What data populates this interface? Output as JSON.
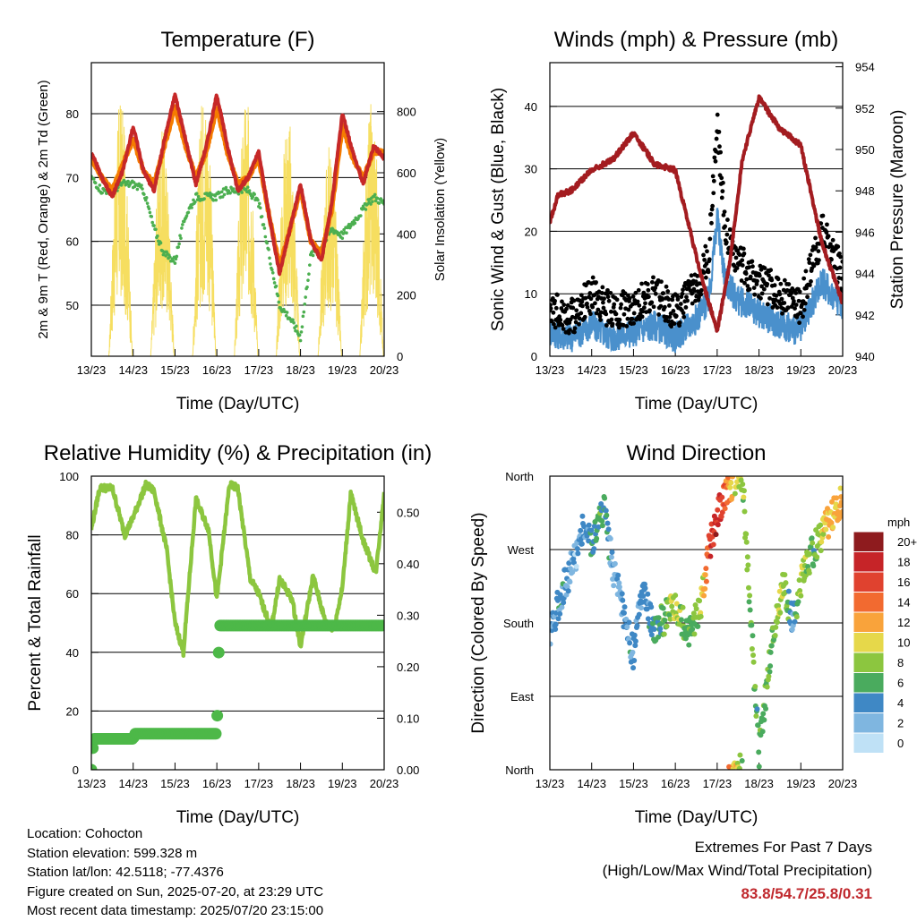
{
  "chart_data": [
    {
      "type": "line",
      "title": "Temperature (F)",
      "xlabel": "Time (Day/UTC)",
      "ylabel": "2m & 9m T (Red, Orange) & 2m Td (Green)",
      "y2label": "Solar Insolation (Yellow)",
      "x_ticks": [
        "13/23",
        "14/23",
        "15/23",
        "16/23",
        "17/23",
        "18/23",
        "19/23",
        "20/23"
      ],
      "ylim": [
        42,
        88
      ],
      "y_ticks": [
        50,
        60,
        70,
        80
      ],
      "y2lim": [
        0,
        960
      ],
      "y2_ticks": [
        0,
        200,
        400,
        600,
        800
      ],
      "series": [
        {
          "name": "2m T",
          "color": "#c62828",
          "x": [
            0,
            0.25,
            0.5,
            0.75,
            1,
            1.25,
            1.5,
            1.75,
            2,
            2.25,
            2.5,
            2.75,
            3,
            3.25,
            3.5,
            3.75,
            4,
            4.25,
            4.5,
            4.75,
            5,
            5.25,
            5.5,
            5.75,
            6,
            6.25,
            6.5,
            6.75,
            7
          ],
          "values": [
            74,
            70,
            67,
            71,
            78,
            71,
            68,
            76,
            83,
            76,
            69,
            75,
            83,
            75,
            68,
            70,
            74,
            64,
            55,
            62,
            69,
            60,
            57,
            66,
            80,
            74,
            69,
            75,
            73
          ]
        },
        {
          "name": "9m T",
          "color": "#f57c00",
          "x": [
            0,
            0.25,
            0.5,
            0.75,
            1,
            1.25,
            1.5,
            1.75,
            2,
            2.25,
            2.5,
            2.75,
            3,
            3.25,
            3.5,
            3.75,
            4,
            4.25,
            4.5,
            4.75,
            5,
            5.25,
            5.5,
            5.75,
            6,
            6.25,
            6.5,
            6.75,
            7
          ],
          "values": [
            73,
            70,
            68,
            72,
            76,
            71,
            69,
            75,
            81,
            75,
            70,
            74,
            81,
            74,
            69,
            70,
            73,
            64,
            56,
            62,
            68,
            60,
            58,
            65,
            78,
            73,
            70,
            74,
            74
          ]
        },
        {
          "name": "2m Td",
          "color": "#4caf50",
          "x": [
            0,
            0.25,
            0.5,
            0.75,
            1,
            1.25,
            1.5,
            1.75,
            2,
            2.25,
            2.5,
            2.75,
            3,
            3.25,
            3.5,
            3.75,
            4,
            4.25,
            4.5,
            4.75,
            5,
            5.25,
            5.5,
            5.75,
            6,
            6.25,
            6.5,
            6.75,
            7
          ],
          "values": [
            70,
            68,
            68,
            69,
            69,
            68,
            62,
            58,
            57,
            64,
            67,
            67,
            67,
            68,
            68,
            68,
            66,
            58,
            50,
            48,
            45,
            58,
            59,
            62,
            61,
            63,
            65,
            67,
            66
          ]
        },
        {
          "name": "Solar Insolation",
          "color": "#f6de60",
          "axis": "y2",
          "x": [
            0,
            0.3,
            0.55,
            0.75,
            0.9,
            1.3,
            1.55,
            1.75,
            1.9,
            2.3,
            2.55,
            2.75,
            2.9,
            3.3,
            3.55,
            3.75,
            3.9,
            4.3,
            4.55,
            4.75,
            4.9,
            5.3,
            5.55,
            5.75,
            5.9,
            6.3,
            6.55,
            6.75,
            6.9
          ],
          "values": [
            0,
            0,
            850,
            600,
            0,
            0,
            750,
            800,
            0,
            0,
            900,
            700,
            0,
            0,
            850,
            750,
            0,
            0,
            800,
            960,
            0,
            0,
            700,
            900,
            0,
            0,
            850,
            650,
            0
          ]
        }
      ]
    },
    {
      "type": "scatter",
      "title": "Winds (mph) & Pressure (mb)",
      "xlabel": "Time (Day/UTC)",
      "ylabel": "Sonic Wind & Gust (Blue, Black)",
      "y2label": "Station Pressure (Maroon)",
      "x_ticks": [
        "13/23",
        "14/23",
        "15/23",
        "16/23",
        "17/23",
        "18/23",
        "19/23",
        "20/23"
      ],
      "ylim": [
        0,
        47
      ],
      "y_ticks": [
        0,
        10,
        20,
        30,
        40
      ],
      "y2lim": [
        940,
        954.2
      ],
      "y2_ticks": [
        940,
        942,
        944,
        946,
        948,
        950,
        952,
        954
      ],
      "series": [
        {
          "name": "Sonic Wind",
          "color": "#4a90cc",
          "x": [
            0,
            0.5,
            1,
            1.5,
            2,
            2.5,
            3,
            3.5,
            3.8,
            4,
            4.2,
            4.5,
            5,
            5.5,
            6,
            6.5,
            7
          ],
          "values": [
            4,
            3,
            5,
            3,
            4,
            5,
            3,
            6,
            9,
            22,
            12,
            9,
            7,
            5,
            4,
            12,
            8
          ]
        },
        {
          "name": "Gust",
          "color": "#000000",
          "x": [
            0,
            0.5,
            1,
            1.5,
            2,
            2.5,
            3,
            3.5,
            3.8,
            4,
            4.2,
            4.5,
            5,
            5.5,
            6,
            6.5,
            7
          ],
          "values": [
            8,
            6,
            10,
            7,
            8,
            10,
            7,
            11,
            16,
            38,
            20,
            15,
            12,
            10,
            8,
            20,
            13
          ]
        },
        {
          "name": "Station Pressure",
          "color": "#a31c20",
          "axis": "y2",
          "x": [
            0,
            0.2,
            0.5,
            1,
            1.5,
            2,
            2.5,
            3,
            3.3,
            3.6,
            4,
            4.3,
            4.6,
            5,
            5.5,
            6,
            6.5,
            7
          ],
          "values": [
            946.5,
            947.8,
            948,
            949,
            949.5,
            950.8,
            949.3,
            949,
            946.5,
            944,
            941.2,
            944.5,
            949.5,
            952.5,
            951,
            950.2,
            945.5,
            942.6
          ]
        }
      ]
    },
    {
      "type": "line",
      "title": "Relative Humidity (%) & Precipitation (in)",
      "xlabel": "Time (Day/UTC)",
      "ylabel": "Percent & Total Rainfall",
      "x_ticks": [
        "13/23",
        "14/23",
        "15/23",
        "16/23",
        "17/23",
        "18/23",
        "19/23",
        "20/23"
      ],
      "ylim": [
        0,
        100
      ],
      "y_ticks": [
        0,
        20,
        40,
        60,
        80,
        100
      ],
      "y2lim": [
        0,
        0.57
      ],
      "y2_ticks": [
        "0.00",
        "0.10",
        "0.20",
        "0.30",
        "0.40",
        "0.50"
      ],
      "series": [
        {
          "name": "Relative Humidity",
          "color": "#8cc63f",
          "x": [
            0,
            0.2,
            0.5,
            0.8,
            1,
            1.3,
            1.5,
            1.8,
            2,
            2.2,
            2.5,
            2.8,
            3,
            3.3,
            3.5,
            3.8,
            4,
            4.3,
            4.5,
            4.8,
            5,
            5.3,
            5.6,
            5.8,
            6,
            6.2,
            6.5,
            6.8,
            7
          ],
          "values": [
            82,
            96,
            96,
            80,
            86,
            97,
            95,
            75,
            50,
            40,
            92,
            82,
            58,
            97,
            96,
            65,
            60,
            48,
            65,
            58,
            42,
            66,
            50,
            48,
            62,
            94,
            78,
            67,
            94
          ]
        },
        {
          "name": "Total Rainfall",
          "color": "#4db848",
          "axis": "y2",
          "x": [
            0,
            0.05,
            1,
            1.05,
            3,
            3.05,
            7,
            7.05
          ],
          "values": [
            0,
            0.06,
            0.06,
            0.07,
            0.07,
            0.28,
            0.28,
            0.31
          ]
        }
      ]
    },
    {
      "type": "scatter",
      "title": "Wind Direction",
      "xlabel": "Time (Day/UTC)",
      "ylabel": "Direction (Colored By Speed)",
      "x_ticks": [
        "13/23",
        "14/23",
        "15/23",
        "16/23",
        "17/23",
        "18/23",
        "19/23",
        "20/23"
      ],
      "y_ticks": [
        "North",
        "East",
        "South",
        "West",
        "North"
      ],
      "ylim": [
        0,
        360
      ],
      "legend_title": "mph",
      "legend_labels": [
        "20+",
        "18",
        "16",
        "14",
        "12",
        "10",
        "8",
        "6",
        "4",
        "2",
        "0"
      ],
      "legend_colors": [
        "#8e1b1e",
        "#c62428",
        "#e0422f",
        "#f26a30",
        "#f9a33b",
        "#e6d84a",
        "#8cc63f",
        "#4aab5e",
        "#3f88c5",
        "#7fb6e0",
        "#bfe1f6"
      ],
      "series": [
        {
          "name": "Wind Direction",
          "x": [
            0,
            0.3,
            0.6,
            0.8,
            1,
            1.3,
            1.5,
            1.8,
            2,
            2.2,
            2.5,
            2.8,
            3,
            3.3,
            3.6,
            3.8,
            4,
            4.3,
            4.6,
            5,
            5.3,
            5.6,
            5.8,
            6,
            6.3,
            6.6,
            7
          ],
          "values": [
            170,
            220,
            260,
            300,
            280,
            320,
            250,
            180,
            140,
            220,
            170,
            190,
            200,
            170,
            200,
            270,
            310,
            350,
            360,
            20,
            150,
            230,
            180,
            230,
            270,
            300,
            330
          ],
          "speed": [
            3,
            4,
            2,
            3,
            5,
            6,
            2,
            4,
            4,
            3,
            5,
            7,
            9,
            6,
            8,
            16,
            18,
            12,
            8,
            6,
            7,
            9,
            3,
            9,
            6,
            11,
            12
          ]
        }
      ]
    }
  ],
  "info": {
    "location": "Location: Cohocton",
    "elevation": "Station elevation: 599.328 m",
    "latlon": "Station lat/lon: 42.5118; -77.4376",
    "created": "Figure created on Sun, 2025-07-20, at 23:29 UTC",
    "timestamp": "Most recent data timestamp: 2025/07/20 23:15:00"
  },
  "extremes": {
    "line1": "Extremes For Past 7 Days",
    "line2": "(High/Low/Max Wind/Total Precipitation)",
    "values": "83.8/54.7/25.8/0.31"
  }
}
